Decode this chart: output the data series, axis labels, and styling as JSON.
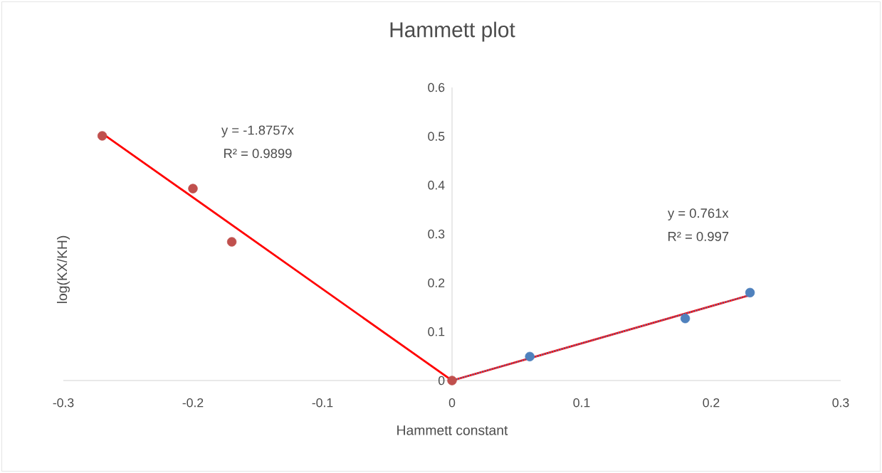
{
  "chart_data": {
    "type": "scatter",
    "title": "Hammett plot",
    "xlabel": "Hammett constant",
    "ylabel": "log(KX/KH)",
    "series": [
      {
        "color": "#c0504d",
        "x": [
          -0.27,
          -0.2,
          -0.17,
          0
        ],
        "values": [
          0.501,
          0.393,
          0.284,
          0
        ],
        "marker": "circle"
      },
      {
        "color": "#4f81bd",
        "x": [
          0.06,
          0.18,
          0.23
        ],
        "values": [
          0.049,
          0.127,
          0.18
        ],
        "marker": "circle"
      },
      {
        "type": "line",
        "color": "#ff0000",
        "x": [
          -0.27,
          0
        ],
        "values": [
          0.506,
          0
        ],
        "marker": "none",
        "line_style": "solid"
      },
      {
        "type": "line",
        "color": "#ff0000",
        "x": [
          0,
          0.23
        ],
        "values": [
          0,
          0.175
        ],
        "marker": "none",
        "line_style": "solid"
      },
      {
        "type": "line",
        "color": "#4f81bd",
        "x": [
          0,
          0.23
        ],
        "values": [
          0,
          0.175
        ],
        "marker": "none",
        "line_style": "dotted"
      }
    ],
    "annotations": [
      "y = -1.8757x",
      "R² = 0.9899",
      "y = 0.761x",
      "R² = 0.997"
    ],
    "xlim": [
      -0.3,
      0.3
    ],
    "xticks": [
      -0.3,
      -0.2,
      -0.1,
      0,
      0.1,
      0.2,
      0.3
    ],
    "ylim": [
      0,
      0.6
    ],
    "yticks": [
      0,
      0.1,
      0.2,
      0.3,
      0.4,
      0.5,
      0.6
    ],
    "grid": false
  }
}
